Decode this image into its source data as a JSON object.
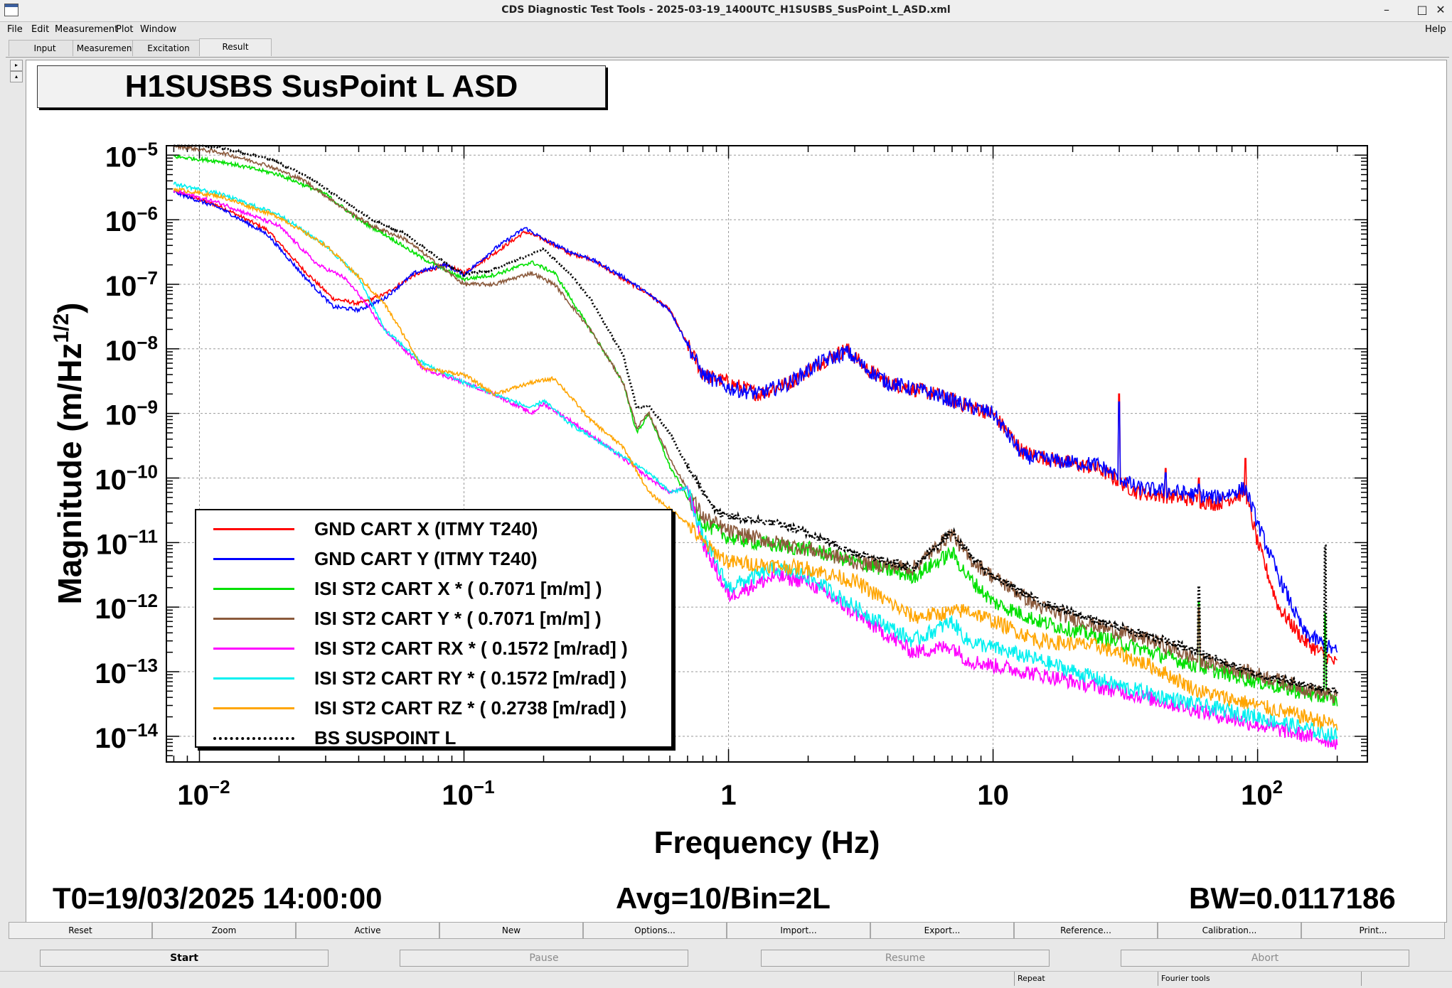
{
  "window": {
    "title": "CDS Diagnostic Test Tools - 2025-03-19_1400UTC_H1SUSBS_SusPoint_L_ASD.xml",
    "controls": [
      "–",
      "□",
      "✕"
    ]
  },
  "menu": {
    "file": "File",
    "edit": "Edit",
    "measurement": "Measurement",
    "plot": "Plot",
    "window": "Window",
    "help": "Help"
  },
  "tabs": {
    "input": "Input",
    "measurement": "Measurement",
    "excitation": "Excitation",
    "result": "Result"
  },
  "side": {
    "arrow_right": "▸",
    "arrow_up": "▴"
  },
  "plot": {
    "title": "H1SUSBS SusPoint L ASD",
    "t0": "T0=19/03/2025 14:00:00",
    "avg": "Avg=10/Bin=2L",
    "bw": "BW=0.0117186"
  },
  "chart_data": {
    "type": "line",
    "xlabel": "Frequency (Hz)",
    "ylabel": "Magnitude (m/Hz^1/2)",
    "x_scale": "log",
    "y_scale": "log",
    "xlim": [
      0.0075,
      260
    ],
    "ylim": [
      4e-15,
      1.4e-05
    ],
    "x_ticks": [
      "10^-2",
      "10^-1",
      "1",
      "10",
      "10^2"
    ],
    "y_ticks": [
      "10^-5",
      "10^-6",
      "10^-7",
      "10^-8",
      "10^-9",
      "10^-10",
      "10^-11",
      "10^-12",
      "10^-13",
      "10^-14"
    ],
    "grid": true,
    "legend_position": "bottom-left",
    "series": [
      {
        "name": "GND CART X (ITMY T240)",
        "color": "#ff0000",
        "dash": false,
        "noise": 0.12,
        "points": [
          [
            0.008,
            2.8e-06
          ],
          [
            0.012,
            1.6e-06
          ],
          [
            0.018,
            7e-07
          ],
          [
            0.025,
            1.6e-07
          ],
          [
            0.032,
            6e-08
          ],
          [
            0.04,
            5e-08
          ],
          [
            0.05,
            7e-08
          ],
          [
            0.065,
            1.4e-07
          ],
          [
            0.085,
            2e-07
          ],
          [
            0.1,
            1.5e-07
          ],
          [
            0.13,
            3e-07
          ],
          [
            0.17,
            6.5e-07
          ],
          [
            0.2,
            5e-07
          ],
          [
            0.25,
            3e-07
          ],
          [
            0.3,
            2.5e-07
          ],
          [
            0.4,
            1.2e-07
          ],
          [
            0.5,
            7e-08
          ],
          [
            0.6,
            4e-08
          ],
          [
            0.8,
            4e-09
          ],
          [
            1.0,
            3e-09
          ],
          [
            1.3,
            2e-09
          ],
          [
            1.7,
            3e-09
          ],
          [
            2.2,
            6e-09
          ],
          [
            2.8,
            1e-08
          ],
          [
            3.3,
            5e-09
          ],
          [
            4,
            3e-09
          ],
          [
            6,
            2e-09
          ],
          [
            8,
            1.3e-09
          ],
          [
            10,
            1e-09
          ],
          [
            13,
            2.5e-10
          ],
          [
            18,
            1.8e-10
          ],
          [
            25,
            1.4e-10
          ],
          [
            35,
            6e-11
          ],
          [
            50,
            5e-11
          ],
          [
            70,
            4e-11
          ],
          [
            90,
            6e-11
          ],
          [
            100,
            1e-11
          ],
          [
            120,
            1e-12
          ],
          [
            150,
            3e-13
          ],
          [
            200,
            1.3e-13
          ]
        ],
        "spikes": [
          [
            30,
            2e-09
          ],
          [
            45,
            1.4e-10
          ],
          [
            60,
            1e-10
          ],
          [
            90,
            2e-10
          ]
        ]
      },
      {
        "name": "GND CART Y (ITMY T240)",
        "color": "#0000ff",
        "dash": false,
        "noise": 0.12,
        "points": [
          [
            0.008,
            2.7e-06
          ],
          [
            0.012,
            1.5e-06
          ],
          [
            0.018,
            6e-07
          ],
          [
            0.025,
            1.3e-07
          ],
          [
            0.032,
            4.5e-08
          ],
          [
            0.04,
            4e-08
          ],
          [
            0.05,
            6e-08
          ],
          [
            0.065,
            1.5e-07
          ],
          [
            0.085,
            2e-07
          ],
          [
            0.1,
            1.4e-07
          ],
          [
            0.13,
            3.5e-07
          ],
          [
            0.17,
            7.5e-07
          ],
          [
            0.2,
            5e-07
          ],
          [
            0.25,
            3.2e-07
          ],
          [
            0.3,
            2.5e-07
          ],
          [
            0.4,
            1.3e-07
          ],
          [
            0.5,
            7e-08
          ],
          [
            0.6,
            4e-08
          ],
          [
            0.8,
            4e-09
          ],
          [
            1.0,
            2.5e-09
          ],
          [
            1.3,
            2e-09
          ],
          [
            1.7,
            3e-09
          ],
          [
            2.2,
            6e-09
          ],
          [
            2.8,
            9e-09
          ],
          [
            3.3,
            5e-09
          ],
          [
            4,
            3e-09
          ],
          [
            6,
            2e-09
          ],
          [
            8,
            1.3e-09
          ],
          [
            10,
            1e-09
          ],
          [
            13,
            2.2e-10
          ],
          [
            18,
            1.8e-10
          ],
          [
            25,
            1.6e-10
          ],
          [
            35,
            7e-11
          ],
          [
            50,
            6e-11
          ],
          [
            70,
            5e-11
          ],
          [
            90,
            7e-11
          ],
          [
            100,
            2e-11
          ],
          [
            120,
            3e-12
          ],
          [
            150,
            4e-13
          ],
          [
            200,
            2e-13
          ]
        ],
        "spikes": [
          [
            30,
            1.5e-09
          ],
          [
            45,
            1.2e-10
          ],
          [
            60,
            8e-11
          ]
        ]
      },
      {
        "name": "ISI ST2 CART X * ( 0.7071 [m/m] )",
        "color": "#00e000",
        "dash": false,
        "noise": 0.12,
        "points": [
          [
            0.008,
            9.5e-06
          ],
          [
            0.012,
            8e-06
          ],
          [
            0.02,
            5e-06
          ],
          [
            0.03,
            2.5e-06
          ],
          [
            0.04,
            1e-06
          ],
          [
            0.05,
            6e-07
          ],
          [
            0.07,
            2.5e-07
          ],
          [
            0.1,
            1.2e-07
          ],
          [
            0.13,
            1.4e-07
          ],
          [
            0.18,
            2.2e-07
          ],
          [
            0.22,
            1.5e-07
          ],
          [
            0.3,
            2e-08
          ],
          [
            0.4,
            3e-09
          ],
          [
            0.45,
            5e-10
          ],
          [
            0.5,
            1e-09
          ],
          [
            0.6,
            1.5e-10
          ],
          [
            0.8,
            2e-11
          ],
          [
            1,
            1.2e-11
          ],
          [
            1.5,
            9e-12
          ],
          [
            2,
            8e-12
          ],
          [
            3,
            5e-12
          ],
          [
            5,
            3e-12
          ],
          [
            7,
            7e-12
          ],
          [
            8,
            3e-12
          ],
          [
            10,
            1.2e-12
          ],
          [
            15,
            6e-13
          ],
          [
            25,
            3.5e-13
          ],
          [
            40,
            2e-13
          ],
          [
            60,
            1.2e-13
          ],
          [
            100,
            7e-14
          ],
          [
            200,
            3.5e-14
          ]
        ],
        "spikes": [
          [
            60,
            1.2e-12
          ],
          [
            180,
            8e-13
          ]
        ]
      },
      {
        "name": "ISI ST2 CART Y * ( 0.7071 [m/m] )",
        "color": "#8b5a3c",
        "dash": false,
        "noise": 0.12,
        "points": [
          [
            0.008,
            1.4e-05
          ],
          [
            0.012,
            1.1e-05
          ],
          [
            0.018,
            7e-06
          ],
          [
            0.025,
            4e-06
          ],
          [
            0.035,
            1.5e-06
          ],
          [
            0.045,
            8e-07
          ],
          [
            0.06,
            5e-07
          ],
          [
            0.08,
            2e-07
          ],
          [
            0.1,
            1e-07
          ],
          [
            0.13,
            1e-07
          ],
          [
            0.18,
            1.5e-07
          ],
          [
            0.22,
            1e-07
          ],
          [
            0.3,
            2e-08
          ],
          [
            0.4,
            3e-09
          ],
          [
            0.45,
            6e-10
          ],
          [
            0.5,
            1e-09
          ],
          [
            0.6,
            2e-10
          ],
          [
            0.8,
            2.5e-11
          ],
          [
            1,
            1.5e-11
          ],
          [
            1.5,
            1e-11
          ],
          [
            2,
            8e-12
          ],
          [
            3,
            5e-12
          ],
          [
            5,
            4e-12
          ],
          [
            7,
            1.4e-11
          ],
          [
            8,
            6e-12
          ],
          [
            10,
            3e-12
          ],
          [
            15,
            1e-12
          ],
          [
            25,
            5e-13
          ],
          [
            40,
            3e-13
          ],
          [
            60,
            1.5e-13
          ],
          [
            100,
            9e-14
          ],
          [
            200,
            4e-14
          ]
        ],
        "spikes": [
          [
            60,
            1e-12
          ]
        ]
      },
      {
        "name": "ISI ST2 CART RX * ( 0.1572 [m/rad] )",
        "color": "#ff00ff",
        "dash": false,
        "noise": 0.12,
        "points": [
          [
            0.008,
            2.8e-06
          ],
          [
            0.012,
            1.8e-06
          ],
          [
            0.02,
            8e-07
          ],
          [
            0.028,
            2e-07
          ],
          [
            0.035,
            1.3e-07
          ],
          [
            0.04,
            7e-08
          ],
          [
            0.05,
            2e-08
          ],
          [
            0.07,
            5e-09
          ],
          [
            0.1,
            3e-09
          ],
          [
            0.13,
            2e-09
          ],
          [
            0.18,
            1e-09
          ],
          [
            0.2,
            1.4e-09
          ],
          [
            0.25,
            8e-10
          ],
          [
            0.35,
            3e-10
          ],
          [
            0.5,
            1e-10
          ],
          [
            0.6,
            6e-11
          ],
          [
            0.7,
            7e-11
          ],
          [
            0.8,
            1e-11
          ],
          [
            1,
            1.5e-12
          ],
          [
            1.5,
            3e-12
          ],
          [
            2,
            2.5e-12
          ],
          [
            3,
            8e-13
          ],
          [
            5,
            2e-13
          ],
          [
            7,
            2.5e-13
          ],
          [
            8,
            1.5e-13
          ],
          [
            15,
            9e-14
          ],
          [
            30,
            5e-14
          ],
          [
            60,
            2.5e-14
          ],
          [
            100,
            1.5e-14
          ],
          [
            200,
            8e-15
          ]
        ],
        "spikes": []
      },
      {
        "name": "ISI ST2 CART RY * ( 0.1572 [m/rad] )",
        "color": "#00f0f0",
        "dash": false,
        "noise": 0.12,
        "points": [
          [
            0.008,
            3.6e-06
          ],
          [
            0.012,
            2.5e-06
          ],
          [
            0.02,
            1.2e-06
          ],
          [
            0.03,
            4e-07
          ],
          [
            0.04,
            1.3e-07
          ],
          [
            0.05,
            2e-08
          ],
          [
            0.07,
            6e-09
          ],
          [
            0.1,
            3e-09
          ],
          [
            0.13,
            2e-09
          ],
          [
            0.18,
            1.2e-09
          ],
          [
            0.2,
            1.6e-09
          ],
          [
            0.25,
            7e-10
          ],
          [
            0.35,
            3e-10
          ],
          [
            0.5,
            1.2e-10
          ],
          [
            0.6,
            6e-11
          ],
          [
            0.7,
            7e-11
          ],
          [
            0.8,
            1.2e-11
          ],
          [
            1,
            2e-12
          ],
          [
            1.5,
            4e-12
          ],
          [
            2,
            3e-12
          ],
          [
            3,
            1e-12
          ],
          [
            5,
            3e-13
          ],
          [
            7,
            6e-13
          ],
          [
            8,
            3e-13
          ],
          [
            15,
            1.5e-13
          ],
          [
            30,
            6e-14
          ],
          [
            60,
            3e-14
          ],
          [
            100,
            2e-14
          ],
          [
            200,
            1e-14
          ]
        ],
        "spikes": []
      },
      {
        "name": "ISI ST2 CART RZ * ( 0.2738 [m/rad] )",
        "color": "#ffa500",
        "dash": false,
        "noise": 0.12,
        "points": [
          [
            0.008,
            3e-06
          ],
          [
            0.012,
            2.3e-06
          ],
          [
            0.02,
            1.1e-06
          ],
          [
            0.03,
            4e-07
          ],
          [
            0.04,
            1.3e-07
          ],
          [
            0.05,
            5e-08
          ],
          [
            0.06,
            1.5e-08
          ],
          [
            0.07,
            5e-09
          ],
          [
            0.1,
            4e-09
          ],
          [
            0.13,
            2e-09
          ],
          [
            0.18,
            3e-09
          ],
          [
            0.22,
            3.5e-09
          ],
          [
            0.3,
            8e-10
          ],
          [
            0.4,
            3e-10
          ],
          [
            0.5,
            6e-11
          ],
          [
            0.7,
            2e-11
          ],
          [
            0.8,
            1e-11
          ],
          [
            1,
            5e-12
          ],
          [
            2,
            4e-12
          ],
          [
            3,
            2.5e-12
          ],
          [
            5,
            7e-13
          ],
          [
            8,
            9e-13
          ],
          [
            15,
            3e-13
          ],
          [
            25,
            2.5e-13
          ],
          [
            40,
            1.2e-13
          ],
          [
            60,
            5e-14
          ],
          [
            100,
            3e-14
          ],
          [
            200,
            1.5e-14
          ]
        ],
        "spikes": []
      },
      {
        "name": "BS SUSPOINT L",
        "color": "#000000",
        "dash": true,
        "noise": 0.06,
        "points": [
          [
            0.008,
            1.6e-05
          ],
          [
            0.012,
            1.3e-05
          ],
          [
            0.018,
            9e-06
          ],
          [
            0.025,
            5e-06
          ],
          [
            0.035,
            2e-06
          ],
          [
            0.045,
            1e-06
          ],
          [
            0.06,
            6e-07
          ],
          [
            0.08,
            2.5e-07
          ],
          [
            0.1,
            1.4e-07
          ],
          [
            0.13,
            1.7e-07
          ],
          [
            0.2,
            3.5e-07
          ],
          [
            0.25,
            1.5e-07
          ],
          [
            0.3,
            6e-08
          ],
          [
            0.4,
            8e-09
          ],
          [
            0.45,
            1.2e-09
          ],
          [
            0.5,
            1.3e-09
          ],
          [
            0.6,
            5e-10
          ],
          [
            0.7,
            1.5e-10
          ],
          [
            0.9,
            3e-11
          ],
          [
            1,
            2.5e-11
          ],
          [
            1.5,
            2e-11
          ],
          [
            2,
            1.4e-11
          ],
          [
            3,
            7e-12
          ],
          [
            5,
            4e-12
          ],
          [
            7,
            1.5e-11
          ],
          [
            8,
            7e-12
          ],
          [
            10,
            3e-12
          ],
          [
            15,
            1.2e-12
          ],
          [
            25,
            6e-13
          ],
          [
            40,
            3.5e-13
          ],
          [
            60,
            2e-13
          ],
          [
            100,
            9e-14
          ],
          [
            200,
            5e-14
          ]
        ],
        "spikes": [
          [
            60,
            2e-12
          ],
          [
            180,
            9e-12
          ]
        ]
      }
    ]
  },
  "buttons": {
    "reset": "Reset",
    "zoom": "Zoom",
    "active": "Active",
    "new": "New",
    "options": "Options...",
    "import": "Import...",
    "export": "Export...",
    "reference": "Reference...",
    "calibration": "Calibration...",
    "print": "Print..."
  },
  "controls": {
    "start": "Start",
    "pause": "Pause",
    "resume": "Resume",
    "abort": "Abort"
  },
  "status": {
    "repeat": "Repeat",
    "fourier": "Fourier tools"
  }
}
